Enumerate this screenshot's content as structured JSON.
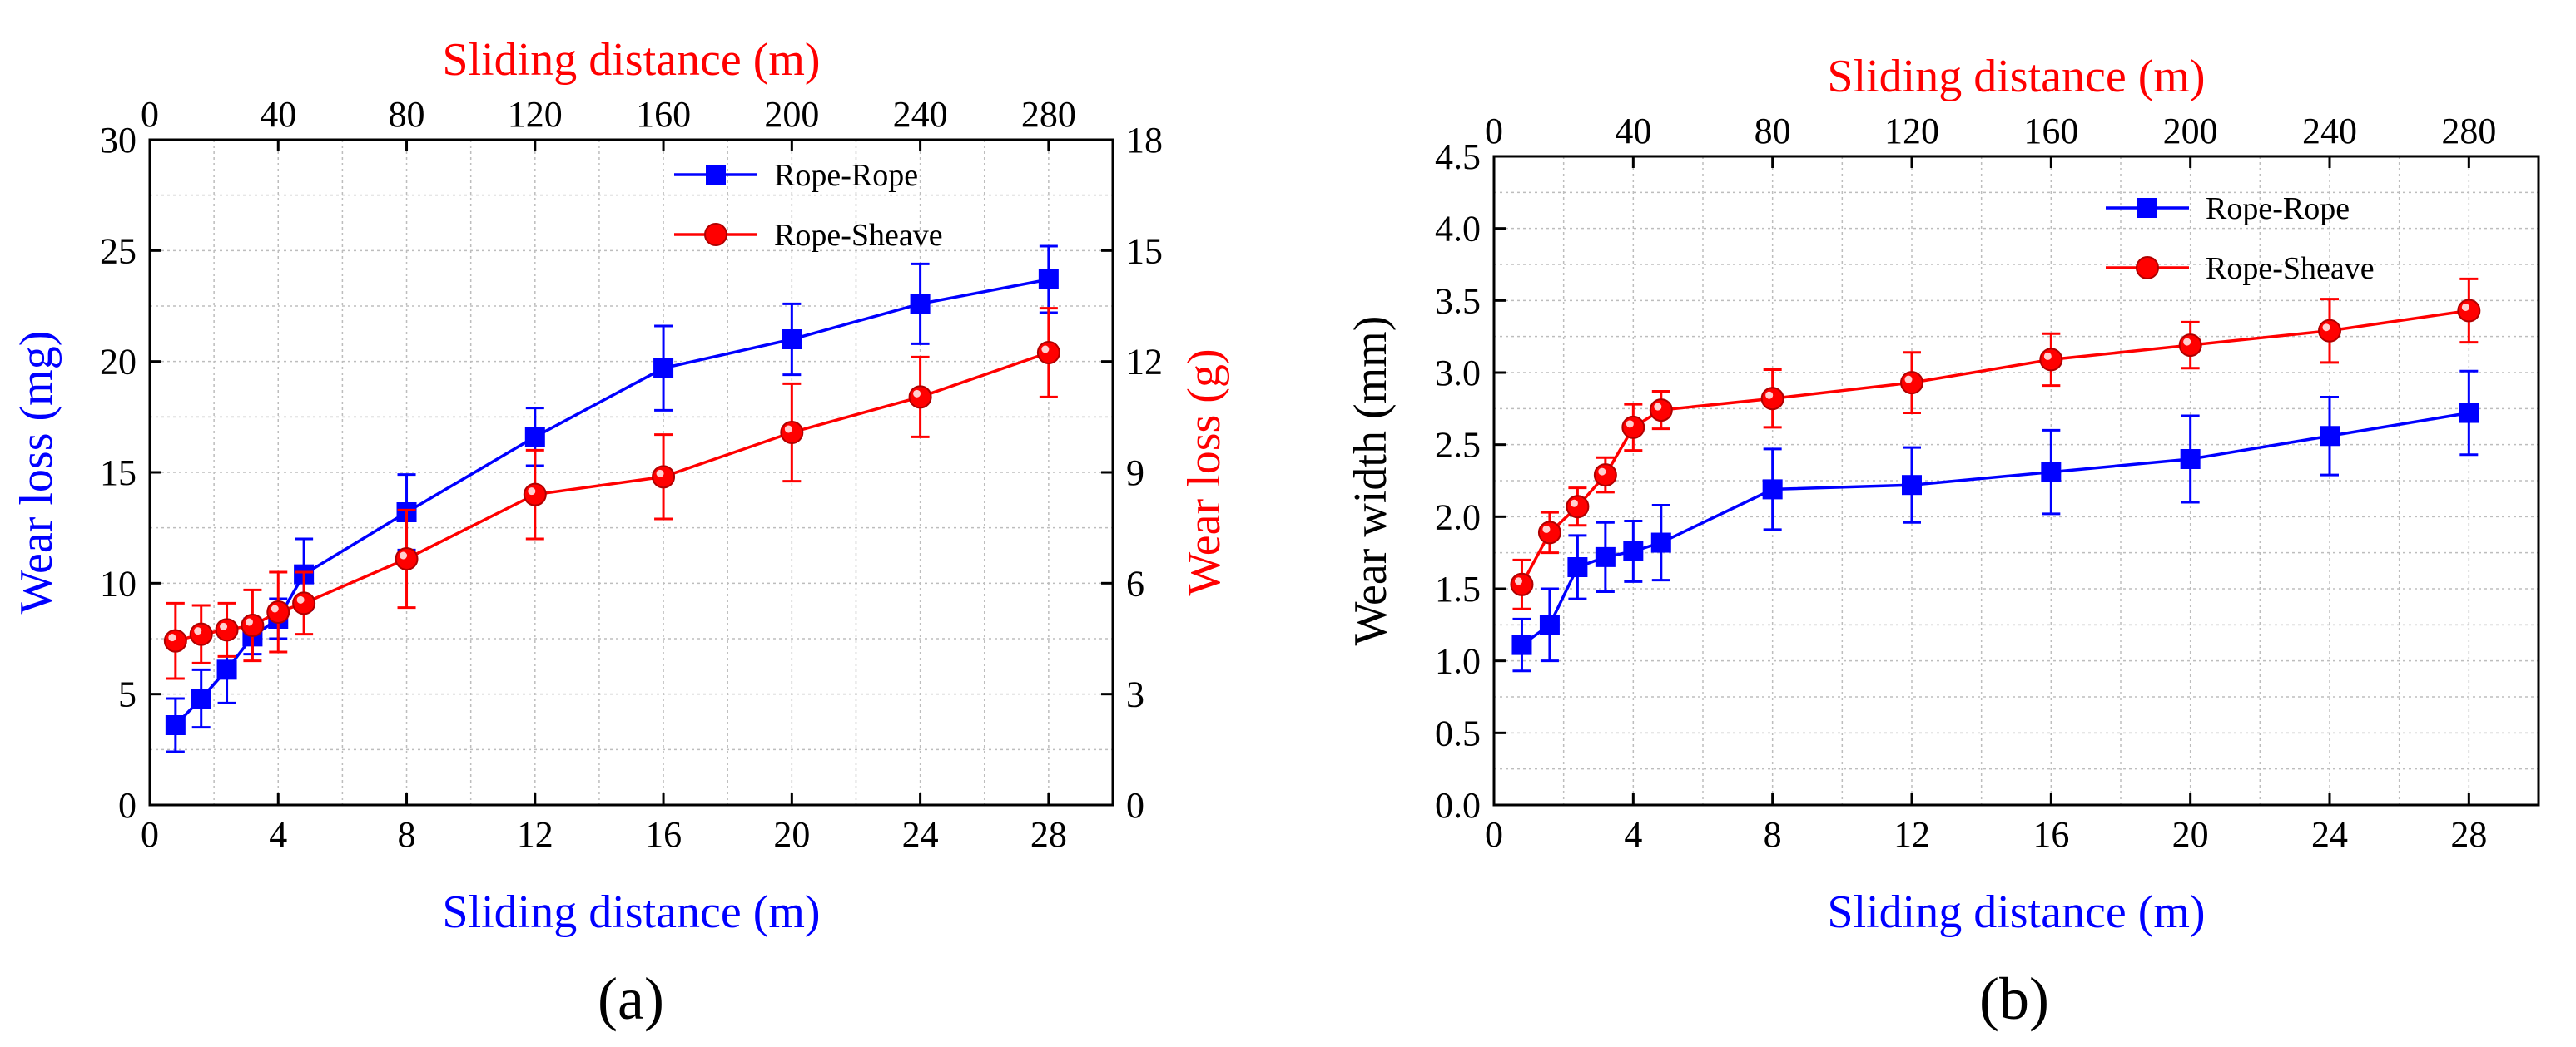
{
  "chart_data": [
    {
      "type": "line",
      "panel_label": "(a)",
      "xlabel": "Sliding distance (m)",
      "xlabel_top": "Sliding distance (m)",
      "ylabel_left": "Wear loss (mg)",
      "ylabel_right": "Wear loss (g)",
      "xlim": [
        0,
        30
      ],
      "xticks": [
        0,
        4,
        8,
        12,
        16,
        20,
        24,
        28
      ],
      "xticks_top": [
        0,
        40,
        80,
        120,
        160,
        200,
        240,
        280
      ],
      "ylim_left": [
        0,
        30
      ],
      "yticks_left": [
        0,
        5,
        10,
        15,
        20,
        25,
        30
      ],
      "ylim_right": [
        0,
        18
      ],
      "yticks_right": [
        0,
        3,
        6,
        9,
        12,
        15,
        18
      ],
      "grid": true,
      "legend": "top-right",
      "series": [
        {
          "name": "Rope-Rope",
          "color": "#0000ff",
          "marker": "square",
          "axis": "left",
          "x": [
            0.8,
            1.6,
            2.4,
            3.2,
            4.0,
            4.8,
            8,
            12,
            16,
            20,
            24,
            28
          ],
          "y": [
            3.6,
            4.8,
            6.1,
            7.6,
            8.4,
            10.4,
            13.2,
            16.6,
            19.7,
            21.0,
            22.6,
            23.7
          ],
          "err": [
            1.2,
            1.3,
            1.5,
            0.8,
            0.9,
            1.6,
            1.7,
            1.3,
            1.9,
            1.6,
            1.8,
            1.5
          ]
        },
        {
          "name": "Rope-Sheave",
          "color": "#ff0000",
          "marker": "circle",
          "axis": "left",
          "x": [
            0.8,
            1.6,
            2.4,
            3.2,
            4.0,
            4.8,
            8,
            12,
            16,
            20,
            24,
            28
          ],
          "y": [
            7.4,
            7.7,
            7.9,
            8.1,
            8.7,
            9.1,
            11.1,
            14.0,
            14.8,
            16.8,
            18.4,
            20.4
          ],
          "err": [
            1.7,
            1.3,
            1.2,
            1.6,
            1.8,
            1.4,
            2.2,
            2.0,
            1.9,
            2.2,
            1.8,
            2.0
          ]
        }
      ]
    },
    {
      "type": "line",
      "panel_label": "(b)",
      "xlabel": "Sliding distance (m)",
      "xlabel_top": "Sliding distance (m)",
      "ylabel_left": "Wear width (mm)",
      "xlim": [
        0,
        30
      ],
      "xticks": [
        0,
        4,
        8,
        12,
        16,
        20,
        24,
        28
      ],
      "xticks_top": [
        0,
        40,
        80,
        120,
        160,
        200,
        240,
        280
      ],
      "ylim_left": [
        0,
        4.5
      ],
      "yticks_left": [
        "0.0",
        "0.5",
        "1.0",
        "1.5",
        "2.0",
        "2.5",
        "3.0",
        "3.5",
        "4.0",
        "4.5"
      ],
      "grid": true,
      "legend": "top-right",
      "series": [
        {
          "name": "Rope-Rope",
          "color": "#0000ff",
          "marker": "square",
          "axis": "left",
          "x": [
            0.8,
            1.6,
            2.4,
            3.2,
            4.0,
            4.8,
            8,
            12,
            16,
            20,
            24,
            28
          ],
          "y": [
            1.11,
            1.25,
            1.65,
            1.72,
            1.76,
            1.82,
            2.19,
            2.22,
            2.31,
            2.4,
            2.56,
            2.72
          ],
          "err": [
            0.18,
            0.25,
            0.22,
            0.24,
            0.21,
            0.26,
            0.28,
            0.26,
            0.29,
            0.3,
            0.27,
            0.29
          ]
        },
        {
          "name": "Rope-Sheave",
          "color": "#ff0000",
          "marker": "circle",
          "axis": "left",
          "x": [
            0.8,
            1.6,
            2.4,
            3.2,
            4.0,
            4.8,
            8,
            12,
            16,
            20,
            24,
            28
          ],
          "y": [
            1.53,
            1.89,
            2.07,
            2.29,
            2.62,
            2.74,
            2.82,
            2.93,
            3.09,
            3.19,
            3.29,
            3.43
          ],
          "err": [
            0.17,
            0.14,
            0.13,
            0.12,
            0.16,
            0.13,
            0.2,
            0.21,
            0.18,
            0.16,
            0.22,
            0.22
          ]
        }
      ]
    }
  ]
}
